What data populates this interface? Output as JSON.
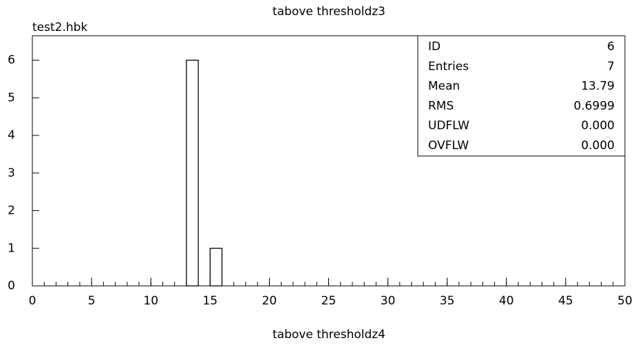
{
  "chart_data": {
    "type": "histogram",
    "title": "tabove thresholdz3",
    "file_label": "test2.hbk",
    "xlabel": "tabove thresholdz4",
    "bins": [
      0,
      1,
      2,
      3,
      4,
      5,
      6,
      7,
      8,
      9,
      10,
      11,
      12,
      13,
      14,
      15,
      16,
      17,
      18,
      19,
      20,
      21,
      22,
      23,
      24,
      25,
      26,
      27,
      28,
      29,
      30,
      31,
      32,
      33,
      34,
      35,
      36,
      37,
      38,
      39,
      40,
      41,
      42,
      43,
      44,
      45,
      46,
      47,
      48,
      49,
      50
    ],
    "counts": [
      0,
      0,
      0,
      0,
      0,
      0,
      0,
      0,
      0,
      0,
      0,
      0,
      0,
      6,
      0,
      1,
      0,
      0,
      0,
      0,
      0,
      0,
      0,
      0,
      0,
      0,
      0,
      0,
      0,
      0,
      0,
      0,
      0,
      0,
      0,
      0,
      0,
      0,
      0,
      0,
      0,
      0,
      0,
      0,
      0,
      0,
      0,
      0,
      0,
      0
    ],
    "color": "#ffffff",
    "xlim": [
      0,
      50
    ],
    "xticks": [
      0,
      5,
      10,
      15,
      20,
      25,
      30,
      35,
      40,
      45,
      50
    ],
    "ylim": [
      0,
      6.65
    ],
    "yticks": [
      0,
      1,
      2,
      3,
      4,
      5,
      6
    ],
    "stats": [
      {
        "label": "ID",
        "value": "6"
      },
      {
        "label": "Entries",
        "value": "7"
      },
      {
        "label": "Mean",
        "value": "13.79"
      },
      {
        "label": "RMS",
        "value": "0.6999"
      },
      {
        "label": "UDFLW",
        "value": "0.000"
      },
      {
        "label": "OVFLW",
        "value": "0.000"
      }
    ]
  }
}
